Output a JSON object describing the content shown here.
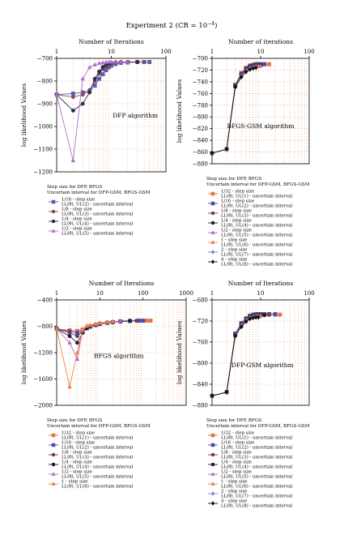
{
  "figure": {
    "title_prefix": "Experiment 2 (CR = 10",
    "title_exp": "−4",
    "title_suffix": ")"
  },
  "chart_data": [
    {
      "id": "dfp",
      "type": "line",
      "x_scale": "log",
      "xlabel": "Number of Iterations",
      "ylabel": "log likelihood Values",
      "annotation": "DFP algorithm",
      "xlim": [
        1,
        100
      ],
      "ylim": [
        -1200,
        -700
      ],
      "xticks": [
        1,
        10,
        100
      ],
      "yticks": [
        -700,
        -800,
        -900,
        -1000,
        -1100,
        -1200
      ],
      "grid": true,
      "legend_title": [
        "Step size for DFP, BFGS",
        "Uncertain interval for DFP-GSM, BFGS-GSM"
      ],
      "series": [
        {
          "name": "1/16 - step size",
          "sub": "LL(θ), UL(2) - uncertain interval",
          "color": "#5a5ab0",
          "marker": "square",
          "x": [
            1,
            2,
            3,
            4,
            5,
            6,
            7,
            8,
            9,
            10,
            12,
            15,
            20,
            30,
            40,
            50
          ],
          "y": [
            -860,
            -855,
            -850,
            -845,
            -820,
            -790,
            -770,
            -752,
            -740,
            -732,
            -725,
            -720,
            -718,
            -716,
            -716,
            -716
          ]
        },
        {
          "name": "1/8 - step size",
          "sub": "LL(θ), UL(3) - uncertain interval",
          "color": "#8a4a5a",
          "marker": "circle",
          "x": [
            1,
            2,
            3,
            4,
            5,
            6,
            7,
            8,
            9,
            10,
            12,
            15,
            20,
            30,
            40
          ],
          "y": [
            -860,
            -870,
            -860,
            -840,
            -800,
            -768,
            -748,
            -735,
            -728,
            -724,
            -720,
            -718,
            -717,
            -716,
            -716
          ]
        },
        {
          "name": "1/4 - step size",
          "sub": "LL(θ), UL(4) - uncertain interval",
          "color": "#2a2a4a",
          "marker": "circle",
          "x": [
            1,
            2,
            3,
            4,
            5,
            6,
            7,
            8,
            9,
            10,
            12,
            15,
            20,
            30
          ],
          "y": [
            -860,
            -930,
            -900,
            -850,
            -790,
            -758,
            -738,
            -728,
            -722,
            -719,
            -717,
            -716,
            -716,
            -716
          ]
        },
        {
          "name": "1/2 - step size",
          "sub": "LL(θ), UL(5) - uncertain interval",
          "color": "#b070c8",
          "marker": "triangle",
          "x": [
            1,
            2,
            3,
            4,
            5,
            6,
            7,
            8,
            9,
            10,
            12,
            15,
            20
          ],
          "y": [
            -860,
            -1150,
            -790,
            -740,
            -728,
            -722,
            -719,
            -717,
            -716,
            -716,
            -716,
            -716,
            -716
          ]
        }
      ]
    },
    {
      "id": "bfgs-gsm",
      "type": "line",
      "x_scale": "log",
      "xlabel": "Number of iterations",
      "ylabel": "log likelihood Values",
      "annotation": "BFGS-GSM algorithm",
      "xlim": [
        1,
        100
      ],
      "ylim": [
        -880,
        -700
      ],
      "xticks": [
        1,
        10,
        100
      ],
      "yticks": [
        -700,
        -720,
        -740,
        -760,
        -780,
        -800,
        -820,
        -840,
        -860,
        -880
      ],
      "grid": true,
      "legend_title": [
        "Step size for DFP, BFGS",
        "Uncertain interval for DFP-GSM, BFGS-GSM"
      ],
      "series": [
        {
          "name": "1/32 - step size",
          "sub": "LL(θ), UL(1) - uncertain interval",
          "color": "#e8704a",
          "marker": "square",
          "x": [
            1,
            2,
            3,
            4,
            5,
            6,
            7,
            8,
            9,
            10,
            12,
            15
          ],
          "y": [
            -862,
            -855,
            -745,
            -725,
            -716,
            -712,
            -711,
            -710,
            -710,
            -710,
            -710,
            -710
          ]
        },
        {
          "name": "1/16 - step size",
          "sub": "LL(θ), UL(2) - uncertain interval",
          "color": "#4a4aa8",
          "marker": "square",
          "x": [
            1,
            2,
            3,
            4,
            5,
            6,
            7,
            8,
            9,
            10,
            12
          ],
          "y": [
            -862,
            -855,
            -746,
            -726,
            -717,
            -713,
            -711,
            -710,
            -710,
            -710,
            -710
          ]
        },
        {
          "name": "1/8 - step size",
          "sub": "LL(θ), UL(3) - uncertain interval",
          "color": "#7a3a4a",
          "marker": "circle",
          "x": [
            1,
            2,
            3,
            4,
            5,
            6,
            7,
            8,
            9,
            10
          ],
          "y": [
            -862,
            -855,
            -747,
            -727,
            -718,
            -714,
            -712,
            -711,
            -711,
            -711
          ]
        },
        {
          "name": "1/4 - step size",
          "sub": "LL(θ), UL(4) - uncertain interval",
          "color": "#1a1a3a",
          "marker": "circle",
          "x": [
            1,
            2,
            3,
            4,
            5,
            6,
            7,
            8,
            9,
            10
          ],
          "y": [
            -862,
            -855,
            -747,
            -728,
            -719,
            -715,
            -713,
            -712,
            -712,
            -712
          ]
        },
        {
          "name": "1/2 - step size",
          "sub": "LL(θ), UL(5) - uncertain interval",
          "color": "#b070c8",
          "marker": "triangle",
          "x": [
            1,
            2,
            3,
            4,
            5,
            6,
            7,
            8,
            9,
            10
          ],
          "y": [
            -862,
            -855,
            -748,
            -729,
            -720,
            -716,
            -714,
            -713,
            -713,
            -713
          ]
        },
        {
          "name": "1 - step size",
          "sub": "LL(θ), UL(6) - uncertain interval",
          "color": "#f08040",
          "marker": "triangle",
          "x": [
            1,
            2,
            3,
            4,
            5,
            6,
            7,
            8,
            9
          ],
          "y": [
            -862,
            -855,
            -748,
            -730,
            -721,
            -717,
            -715,
            -714,
            -714
          ]
        },
        {
          "name": "2 - step size",
          "sub": "LL(θ), UL(7) - uncertain interval",
          "color": "#8080d0",
          "marker": "diamond",
          "x": [
            1,
            2,
            3,
            4,
            5,
            6,
            7,
            8
          ],
          "y": [
            -862,
            -855,
            -749,
            -731,
            -722,
            -718,
            -716,
            -715
          ]
        },
        {
          "name": "4 - step size",
          "sub": "LL(θ), UL(8) - uncertain interval",
          "color": "#101010",
          "marker": "diamond",
          "x": [
            1,
            2,
            3,
            4,
            5,
            6,
            7,
            8
          ],
          "y": [
            -862,
            -855,
            -749,
            -732,
            -723,
            -719,
            -717,
            -716
          ]
        }
      ]
    },
    {
      "id": "bfgs",
      "type": "line",
      "x_scale": "log",
      "xlabel": "Number of Iterations",
      "ylabel": "log likelihood Values",
      "annotation": "BFGS algorithm",
      "xlim": [
        1,
        1000
      ],
      "ylim": [
        -2000,
        -400
      ],
      "xticks": [
        1,
        10,
        100,
        1000
      ],
      "yticks": [
        -400,
        -800,
        -1200,
        -1600,
        -2000
      ],
      "grid": true,
      "legend_title": [
        "Step size for DFP, BFGS",
        "Uncertain interval for DFP-GSM, BFGS-GSM"
      ],
      "series": [
        {
          "name": "1/32 - step size",
          "sub": "LL(θ), UL(1) - uncertain interval",
          "color": "#e8704a",
          "marker": "square",
          "x": [
            1,
            2,
            3,
            4,
            5,
            6,
            8,
            10,
            15,
            20,
            30,
            50,
            80,
            120,
            150
          ],
          "y": [
            -840,
            -860,
            -870,
            -850,
            -820,
            -800,
            -780,
            -765,
            -748,
            -738,
            -728,
            -720,
            -716,
            -715,
            -715
          ]
        },
        {
          "name": "1/16 - step size",
          "sub": "LL(θ), UL(2) - uncertain interval",
          "color": "#4a4aa8",
          "marker": "square",
          "x": [
            1,
            2,
            3,
            4,
            5,
            6,
            8,
            10,
            15,
            20,
            30,
            50,
            80,
            100
          ],
          "y": [
            -840,
            -880,
            -900,
            -870,
            -830,
            -805,
            -782,
            -766,
            -748,
            -738,
            -727,
            -719,
            -716,
            -715
          ]
        },
        {
          "name": "1/8 - step size",
          "sub": "LL(θ), UL(3) - uncertain interval",
          "color": "#7a3a4a",
          "marker": "circle",
          "x": [
            1,
            2,
            3,
            4,
            5,
            6,
            8,
            10,
            15,
            20,
            30,
            50,
            70
          ],
          "y": [
            -840,
            -900,
            -950,
            -880,
            -830,
            -805,
            -780,
            -764,
            -746,
            -736,
            -726,
            -718,
            -716
          ]
        },
        {
          "name": "1/4 - step size",
          "sub": "LL(θ), UL(4) - uncertain interval",
          "color": "#1a1a3a",
          "marker": "circle",
          "x": [
            1,
            2,
            3,
            4,
            5,
            6,
            8,
            10,
            15,
            20,
            30,
            50
          ],
          "y": [
            -840,
            -950,
            -1050,
            -900,
            -830,
            -800,
            -776,
            -760,
            -744,
            -734,
            -724,
            -717
          ]
        },
        {
          "name": "1/2 - step size",
          "sub": "LL(θ), UL(5) - uncertain interval",
          "color": "#b070c8",
          "marker": "triangle",
          "x": [
            1,
            2,
            3,
            4,
            5,
            6,
            8,
            10,
            15,
            20,
            30
          ],
          "y": [
            -840,
            -1050,
            -1300,
            -860,
            -800,
            -785,
            -768,
            -754,
            -740,
            -730,
            -720
          ]
        },
        {
          "name": "1 - step size",
          "sub": "LL(θ), UL(6) - uncertain interval",
          "color": "#f08040",
          "marker": "triangle",
          "x": [
            1,
            2,
            3,
            4,
            5,
            6,
            8,
            10,
            15,
            20
          ],
          "y": [
            -840,
            -1720,
            -1200,
            -850,
            -790,
            -780,
            -762,
            -750,
            -736,
            -726
          ]
        }
      ]
    },
    {
      "id": "dfp-gsm",
      "type": "line",
      "x_scale": "log",
      "xlabel": "Number of Iterations",
      "ylabel": "log likelihood Values",
      "annotation": "DFP-GSM algorithm",
      "xlim": [
        1,
        100
      ],
      "ylim": [
        -880,
        -680
      ],
      "xticks": [
        1,
        10,
        100
      ],
      "yticks": [
        -680,
        -720,
        -760,
        -800,
        -840,
        -880
      ],
      "grid": true,
      "legend_title": [
        "Step size for DFP, BFGS",
        "Uncertain interval for DFP-GSM, BFGS-GSM"
      ],
      "series": [
        {
          "name": "1/32 - step size",
          "sub": "LL(θ), UL(1) - uncertain interval",
          "color": "#e8704a",
          "marker": "square",
          "x": [
            1,
            2,
            3,
            4,
            5,
            6,
            7,
            8,
            9,
            10,
            12,
            15,
            20,
            25
          ],
          "y": [
            -862,
            -855,
            -748,
            -730,
            -720,
            -714,
            -711,
            -710,
            -709,
            -709,
            -708,
            -708,
            -708,
            -708
          ]
        },
        {
          "name": "1/16 - step size",
          "sub": "LL(θ), UL(2) - uncertain interval",
          "color": "#4a4aa8",
          "marker": "square",
          "x": [
            1,
            2,
            3,
            4,
            5,
            6,
            7,
            8,
            9,
            10,
            12,
            15,
            20
          ],
          "y": [
            -862,
            -855,
            -744,
            -724,
            -715,
            -710,
            -708,
            -707,
            -707,
            -707,
            -707,
            -707,
            -707
          ]
        },
        {
          "name": "1/8 - step size",
          "sub": "LL(θ), UL(3) - uncertain interval",
          "color": "#7a3a4a",
          "marker": "circle",
          "x": [
            1,
            2,
            3,
            4,
            5,
            6,
            7,
            8,
            9,
            10,
            12,
            15
          ],
          "y": [
            -862,
            -855,
            -745,
            -726,
            -716,
            -711,
            -709,
            -708,
            -708,
            -708,
            -708,
            -708
          ]
        },
        {
          "name": "1/4 - step size",
          "sub": "LL(θ), UL(4) - uncertain interval",
          "color": "#1a1a3a",
          "marker": "circle",
          "x": [
            1,
            2,
            3,
            4,
            5,
            6,
            7,
            8,
            9,
            10,
            12
          ],
          "y": [
            -862,
            -855,
            -745,
            -727,
            -717,
            -712,
            -710,
            -709,
            -709,
            -709,
            -709
          ]
        },
        {
          "name": "1/2 - step size",
          "sub": "LL(θ), UL(5) - uncertain interval",
          "color": "#b070c8",
          "marker": "triangle",
          "x": [
            1,
            2,
            3,
            4,
            5,
            6,
            7,
            8,
            9,
            10
          ],
          "y": [
            -862,
            -855,
            -746,
            -728,
            -718,
            -713,
            -711,
            -710,
            -710,
            -710
          ]
        },
        {
          "name": "1 - step size",
          "sub": "LL(θ), UL(6) - uncertain interval",
          "color": "#f08040",
          "marker": "triangle",
          "x": [
            1,
            2,
            3,
            4,
            5,
            6,
            7,
            8,
            9,
            10
          ],
          "y": [
            -862,
            -855,
            -747,
            -729,
            -719,
            -714,
            -712,
            -711,
            -711,
            -711
          ]
        },
        {
          "name": "2 - step size",
          "sub": "LL(θ), UL(7) - uncertain interval",
          "color": "#8080d0",
          "marker": "diamond",
          "x": [
            1,
            2,
            3,
            4,
            5,
            6,
            7,
            8,
            9
          ],
          "y": [
            -862,
            -855,
            -747,
            -730,
            -720,
            -715,
            -713,
            -712,
            -712
          ]
        },
        {
          "name": "4 - step size",
          "sub": "LL(θ), UL(8) - uncertain interval",
          "color": "#101010",
          "marker": "diamond",
          "x": [
            1,
            2,
            3,
            4,
            5,
            6,
            7,
            8,
            9
          ],
          "y": [
            -862,
            -855,
            -748,
            -731,
            -721,
            -716,
            -714,
            -713,
            -713
          ]
        }
      ]
    }
  ]
}
